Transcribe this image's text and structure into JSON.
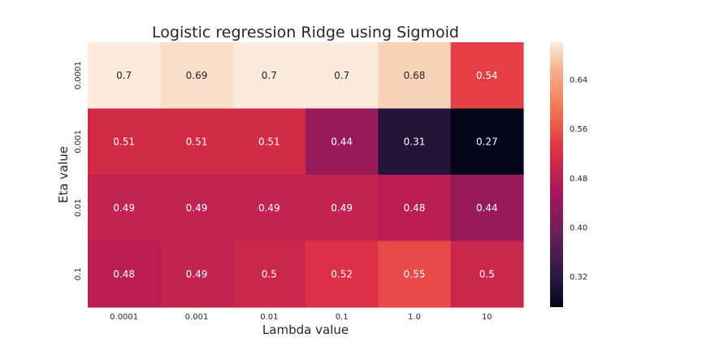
{
  "chart_data": {
    "type": "heatmap",
    "title": "Logistic regression Ridge using Sigmoid",
    "xlabel": "Lambda value",
    "ylabel": "Eta value",
    "x_categories": [
      "0.0001",
      "0.001",
      "0.01",
      "0.1",
      "1.0",
      "10"
    ],
    "y_categories": [
      "0.0001",
      "0.001",
      "0.01",
      "0.1"
    ],
    "values": [
      [
        0.7,
        0.69,
        0.7,
        0.7,
        0.68,
        0.54
      ],
      [
        0.51,
        0.51,
        0.51,
        0.44,
        0.31,
        0.27
      ],
      [
        0.49,
        0.49,
        0.49,
        0.49,
        0.48,
        0.44
      ],
      [
        0.48,
        0.49,
        0.5,
        0.52,
        0.55,
        0.5
      ]
    ],
    "colorbar": {
      "ticks": [
        "0.64",
        "0.56",
        "0.48",
        "0.40",
        "0.32"
      ],
      "vmin": 0.27,
      "vmax": 0.7,
      "colormap": "rocket"
    },
    "grid": false,
    "annotations": true
  }
}
